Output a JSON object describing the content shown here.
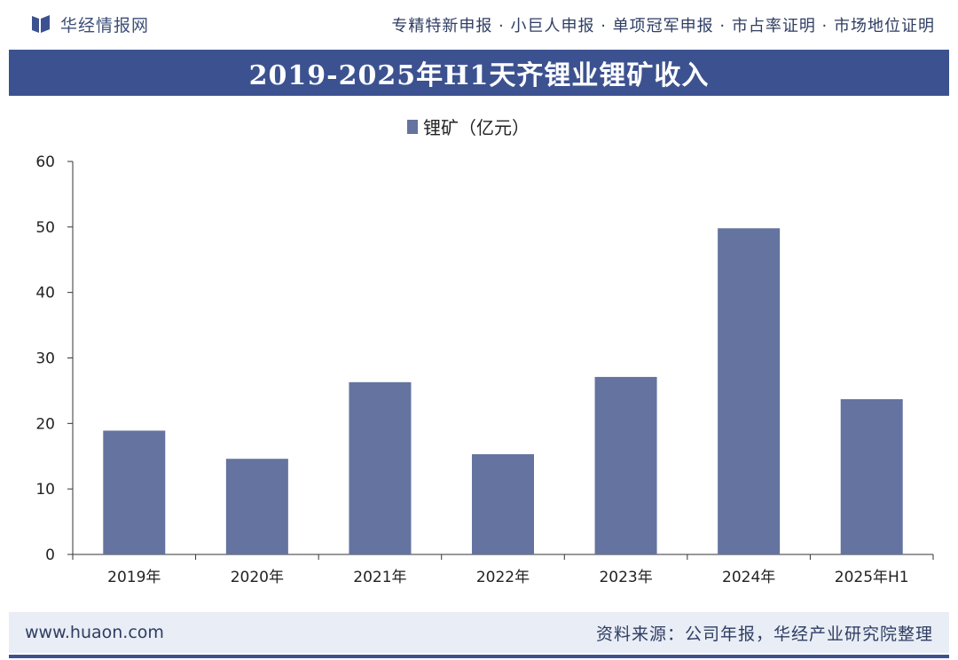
{
  "header": {
    "brand": "华经情报网",
    "tagline": "专精特新申报 · 小巨人申报 · 单项冠军申报 · 市占率证明 · 市场地位证明"
  },
  "footer": {
    "site": "www.huaon.com",
    "source": "资料来源：公司年报，华经产业研究院整理"
  },
  "colors": {
    "bar": "#64739f",
    "title_bg": "#3c5290"
  },
  "chart_data": {
    "type": "bar",
    "title": "2019-2025年H1天齐锂业锂矿收入",
    "categories": [
      "2019年",
      "2020年",
      "2021年",
      "2022年",
      "2023年",
      "2024年",
      "2025年H1"
    ],
    "series": [
      {
        "name": "锂矿（亿元）",
        "values": [
          18.9,
          14.6,
          26.3,
          15.3,
          27.1,
          49.8,
          23.7
        ]
      }
    ],
    "yticks": [
      0,
      10,
      20,
      30,
      40,
      50,
      60
    ],
    "ylim": [
      0,
      60
    ],
    "grid": false,
    "legend": "top-center"
  }
}
